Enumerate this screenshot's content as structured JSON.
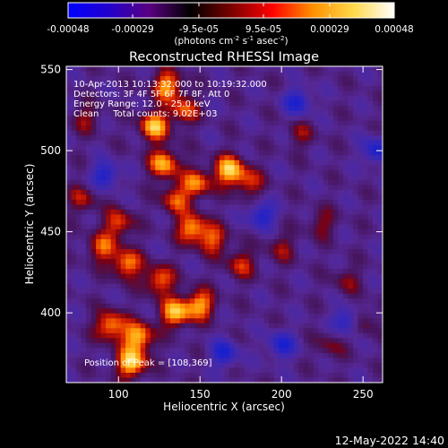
{
  "colorbar": {
    "ticks": [
      {
        "value": -0.00048,
        "label": "-0.00048"
      },
      {
        "value": -0.00029,
        "label": "-0.00029"
      },
      {
        "value": -9.5e-05,
        "label": "-9.5e-05"
      },
      {
        "value": 9.5e-05,
        "label": "9.5e-05"
      },
      {
        "value": 0.00029,
        "label": "0.00029"
      },
      {
        "value": 0.00048,
        "label": "0.00048"
      }
    ],
    "range": [
      -0.00048,
      0.00048
    ],
    "unit_parts": {
      "base": "(photons cm",
      "e1": "-2",
      "mid1": " s",
      "e2": "-1",
      "mid2": " asec",
      "e3": "-2",
      "end": ")"
    },
    "colors": [
      "#0000ff",
      "#2200cc",
      "#5a0080",
      "#000000",
      "#7a0000",
      "#ff0000",
      "#ff9000",
      "#ffd84a",
      "#ffffff"
    ]
  },
  "chart_data": {
    "type": "heatmap",
    "title": "Reconstructed RHESSI Image",
    "xlabel": "Heliocentric X (arcsec)",
    "ylabel": "Heliocentric Y (arcsec)",
    "xlim": [
      68,
      262
    ],
    "ylim": [
      357,
      552
    ],
    "xticks": [
      {
        "value": 100,
        "label": "100"
      },
      {
        "value": 150,
        "label": "150"
      },
      {
        "value": 200,
        "label": "200"
      },
      {
        "value": 250,
        "label": "250"
      }
    ],
    "yticks": [
      {
        "value": 400,
        "label": "400"
      },
      {
        "value": 450,
        "label": "450"
      },
      {
        "value": 500,
        "label": "500"
      },
      {
        "value": 550,
        "label": "550"
      }
    ],
    "annotations": [
      "10-Apr-2013 10:13:32.000 to 10:19:32.000",
      "Detectors: 3F 4F 5F 6F 7F 8F, Att 0",
      "Energy Range: 12.0 - 25.0 keV",
      "Clean     Total counts: 9.02E+03"
    ],
    "peak_label": "Position of Peak = [108,369]",
    "peak_position": [
      108,
      369
    ],
    "hot_spots": [
      {
        "x": 108,
        "y": 369,
        "weight": 1.0
      },
      {
        "x": 112,
        "y": 385,
        "weight": 0.9
      },
      {
        "x": 95,
        "y": 392,
        "weight": 0.8
      },
      {
        "x": 135,
        "y": 400,
        "weight": 0.9
      },
      {
        "x": 150,
        "y": 405,
        "weight": 0.8
      },
      {
        "x": 125,
        "y": 420,
        "weight": 0.7
      },
      {
        "x": 105,
        "y": 430,
        "weight": 0.75
      },
      {
        "x": 90,
        "y": 440,
        "weight": 0.6
      },
      {
        "x": 100,
        "y": 455,
        "weight": 0.6
      },
      {
        "x": 145,
        "y": 452,
        "weight": 0.8
      },
      {
        "x": 158,
        "y": 445,
        "weight": 0.6
      },
      {
        "x": 135,
        "y": 470,
        "weight": 0.6
      },
      {
        "x": 148,
        "y": 480,
        "weight": 0.7
      },
      {
        "x": 128,
        "y": 492,
        "weight": 0.85
      },
      {
        "x": 168,
        "y": 488,
        "weight": 0.95
      },
      {
        "x": 180,
        "y": 480,
        "weight": 0.5
      },
      {
        "x": 122,
        "y": 515,
        "weight": 0.9
      },
      {
        "x": 130,
        "y": 540,
        "weight": 0.8
      },
      {
        "x": 140,
        "y": 525,
        "weight": 0.6
      },
      {
        "x": 175,
        "y": 430,
        "weight": 0.5
      },
      {
        "x": 200,
        "y": 440,
        "weight": 0.35
      },
      {
        "x": 225,
        "y": 455,
        "weight": 0.35
      },
      {
        "x": 240,
        "y": 420,
        "weight": 0.3
      },
      {
        "x": 212,
        "y": 510,
        "weight": 0.3
      },
      {
        "x": 230,
        "y": 380,
        "weight": 0.3
      },
      {
        "x": 250,
        "y": 395,
        "weight": 0.35
      },
      {
        "x": 80,
        "y": 520,
        "weight": 0.35
      },
      {
        "x": 78,
        "y": 470,
        "weight": 0.4
      }
    ],
    "cold_spots": [
      {
        "x": 92,
        "y": 485
      },
      {
        "x": 240,
        "y": 395
      },
      {
        "x": 200,
        "y": 380
      },
      {
        "x": 188,
        "y": 460
      },
      {
        "x": 210,
        "y": 530
      },
      {
        "x": 165,
        "y": 375
      },
      {
        "x": 258,
        "y": 500
      }
    ]
  },
  "timestamp": "12-May-2022 14:40"
}
